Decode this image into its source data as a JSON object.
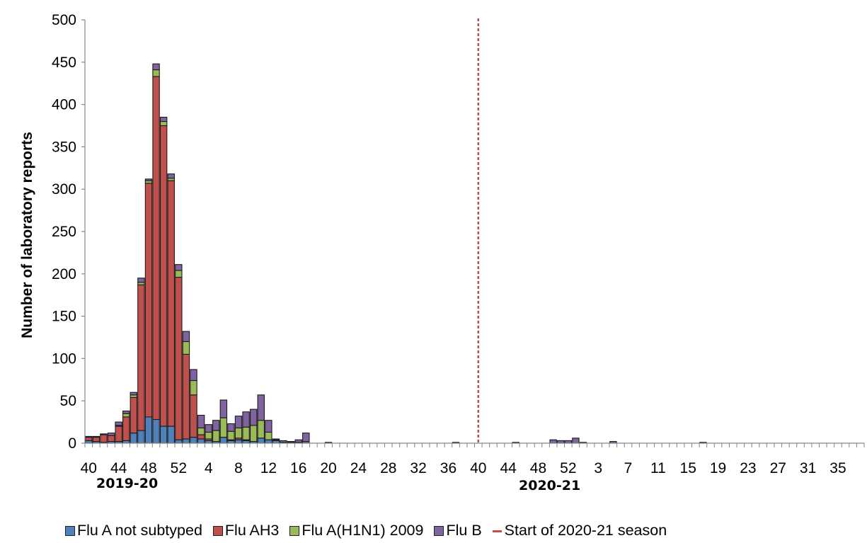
{
  "chart_data": {
    "type": "bar",
    "stacked": true,
    "ylabel": "Number of laboratory reports",
    "xlabel": "",
    "ylim": [
      0,
      500
    ],
    "yticks": [
      0,
      50,
      100,
      150,
      200,
      250,
      300,
      350,
      400,
      450,
      500
    ],
    "x_tick_labels": [
      "40",
      "44",
      "48",
      "52",
      "4",
      "8",
      "12",
      "16",
      "20",
      "24",
      "28",
      "32",
      "36",
      "40",
      "44",
      "48",
      "52",
      "3",
      "7",
      "11",
      "15",
      "19",
      "23",
      "27",
      "31",
      "35"
    ],
    "seasons": [
      "2019-20",
      "2020-21"
    ],
    "reference_line": {
      "label": "Start of 2020-21 season",
      "week": "40 (2020-21)",
      "color": "#c0504d",
      "style": "dashed"
    },
    "grid": false,
    "legend_position": "bottom",
    "weeks": [
      "40",
      "41",
      "42",
      "43",
      "44",
      "45",
      "46",
      "47",
      "48",
      "49",
      "50",
      "51",
      "52",
      "1",
      "2",
      "3",
      "4",
      "5",
      "6",
      "7",
      "8",
      "9",
      "10",
      "11",
      "12",
      "13",
      "14",
      "15",
      "16",
      "17",
      "18",
      "19",
      "20",
      "21",
      "22",
      "23",
      "24",
      "25",
      "26",
      "27",
      "28",
      "29",
      "30",
      "31",
      "32",
      "33",
      "34",
      "35",
      "36",
      "37",
      "38",
      "39",
      "40",
      "41",
      "42",
      "43",
      "44",
      "45",
      "46",
      "47",
      "48",
      "49",
      "50",
      "51",
      "52",
      "53",
      "1",
      "2",
      "3",
      "4",
      "5",
      "6",
      "7",
      "8",
      "9",
      "10",
      "11",
      "12",
      "13",
      "14",
      "15",
      "16",
      "17",
      "18",
      "19",
      "20",
      "21",
      "22",
      "23",
      "24",
      "25",
      "26",
      "27",
      "28",
      "29",
      "30",
      "31",
      "32",
      "33",
      "34",
      "35",
      "36",
      "37",
      "38"
    ],
    "series": [
      {
        "name": "Flu A not subtyped",
        "color": "#4f81bd",
        "values": [
          3,
          2,
          1,
          2,
          2,
          3,
          12,
          15,
          31,
          28,
          20,
          20,
          4,
          5,
          7,
          5,
          3,
          2,
          7,
          3,
          4,
          3,
          2,
          6,
          4,
          3,
          1,
          1,
          1,
          2,
          0,
          0,
          0,
          0,
          0,
          0,
          0,
          0,
          0,
          0,
          0,
          0,
          0,
          0,
          0,
          0,
          0,
          0,
          0,
          0,
          0,
          0,
          0,
          0,
          0,
          0,
          0,
          0,
          0,
          0,
          0,
          0,
          0,
          0,
          0,
          0,
          0,
          0,
          0,
          0,
          0,
          0,
          0,
          0,
          0,
          0,
          0,
          0,
          0,
          0,
          0,
          0,
          0,
          0,
          0,
          0,
          0,
          0,
          0,
          0,
          0,
          0,
          0,
          0,
          0,
          0,
          0,
          0,
          0,
          0,
          0,
          0,
          0,
          0
        ]
      },
      {
        "name": "Flu AH3",
        "color": "#c0504d",
        "values": [
          4,
          5,
          9,
          7,
          18,
          28,
          42,
          172,
          276,
          405,
          355,
          290,
          192,
          100,
          50,
          5,
          2,
          0,
          0,
          1,
          2,
          1,
          0,
          0,
          0,
          0,
          0,
          0,
          0,
          0,
          0,
          0,
          0,
          0,
          0,
          0,
          0,
          0,
          0,
          0,
          0,
          0,
          0,
          0,
          0,
          0,
          0,
          0,
          0,
          0,
          0,
          0,
          0,
          0,
          0,
          0,
          0,
          0,
          0,
          0,
          0,
          0,
          0,
          0,
          0,
          0,
          0,
          0,
          0,
          0,
          0,
          0,
          0,
          0,
          0,
          0,
          0,
          0,
          0,
          0,
          0,
          0,
          0,
          0,
          0,
          0,
          0,
          0,
          0,
          0,
          0,
          0,
          0,
          0,
          0,
          0,
          0,
          0,
          0,
          0,
          0,
          0,
          0,
          0
        ]
      },
      {
        "name": "Flu A(H1N1) 2009",
        "color": "#9bbb59",
        "values": [
          0,
          0,
          0,
          0,
          1,
          4,
          3,
          3,
          3,
          8,
          5,
          3,
          8,
          15,
          17,
          8,
          8,
          13,
          23,
          10,
          12,
          15,
          19,
          21,
          9,
          1,
          0,
          0,
          0,
          0,
          0,
          0,
          0,
          0,
          0,
          0,
          0,
          0,
          0,
          0,
          0,
          0,
          0,
          0,
          0,
          0,
          0,
          0,
          0,
          0,
          0,
          0,
          0,
          0,
          0,
          0,
          0,
          0,
          0,
          0,
          0,
          0,
          0,
          0,
          0,
          0,
          0,
          0,
          0,
          0,
          0,
          0,
          0,
          0,
          0,
          0,
          0,
          0,
          0,
          0,
          0,
          0,
          0,
          0,
          0,
          0,
          0,
          0,
          0,
          0,
          0,
          0,
          0,
          0,
          0,
          0,
          0,
          0,
          0,
          0,
          0,
          0,
          0,
          0
        ]
      },
      {
        "name": "Flu B",
        "color": "#8064a2",
        "values": [
          1,
          1,
          1,
          3,
          4,
          3,
          3,
          5,
          2,
          7,
          5,
          5,
          7,
          12,
          13,
          15,
          9,
          12,
          21,
          9,
          14,
          18,
          19,
          30,
          14,
          1,
          2,
          1,
          3,
          10,
          0,
          0,
          1,
          0,
          0,
          0,
          0,
          0,
          0,
          0,
          0,
          0,
          0,
          0,
          0,
          0,
          0,
          0,
          0,
          1,
          0,
          0,
          0,
          0,
          0,
          0,
          0,
          1,
          0,
          0,
          0,
          0,
          4,
          3,
          3,
          6,
          1,
          0,
          0,
          0,
          2,
          0,
          0,
          0,
          0,
          0,
          0,
          0,
          0,
          0,
          0,
          0,
          1,
          0,
          0,
          0,
          0,
          0,
          0,
          0,
          0,
          0,
          0,
          0,
          0,
          0,
          0,
          0,
          0,
          0,
          0,
          0,
          0,
          0
        ]
      }
    ]
  },
  "season_labels": {
    "first": "2019-20",
    "second": "2020-21"
  },
  "legend": {
    "items": [
      "Flu A not subtyped",
      "Flu AH3",
      "Flu A(H1N1) 2009",
      "Flu B"
    ],
    "line_item": "Start of 2020-21 season"
  }
}
